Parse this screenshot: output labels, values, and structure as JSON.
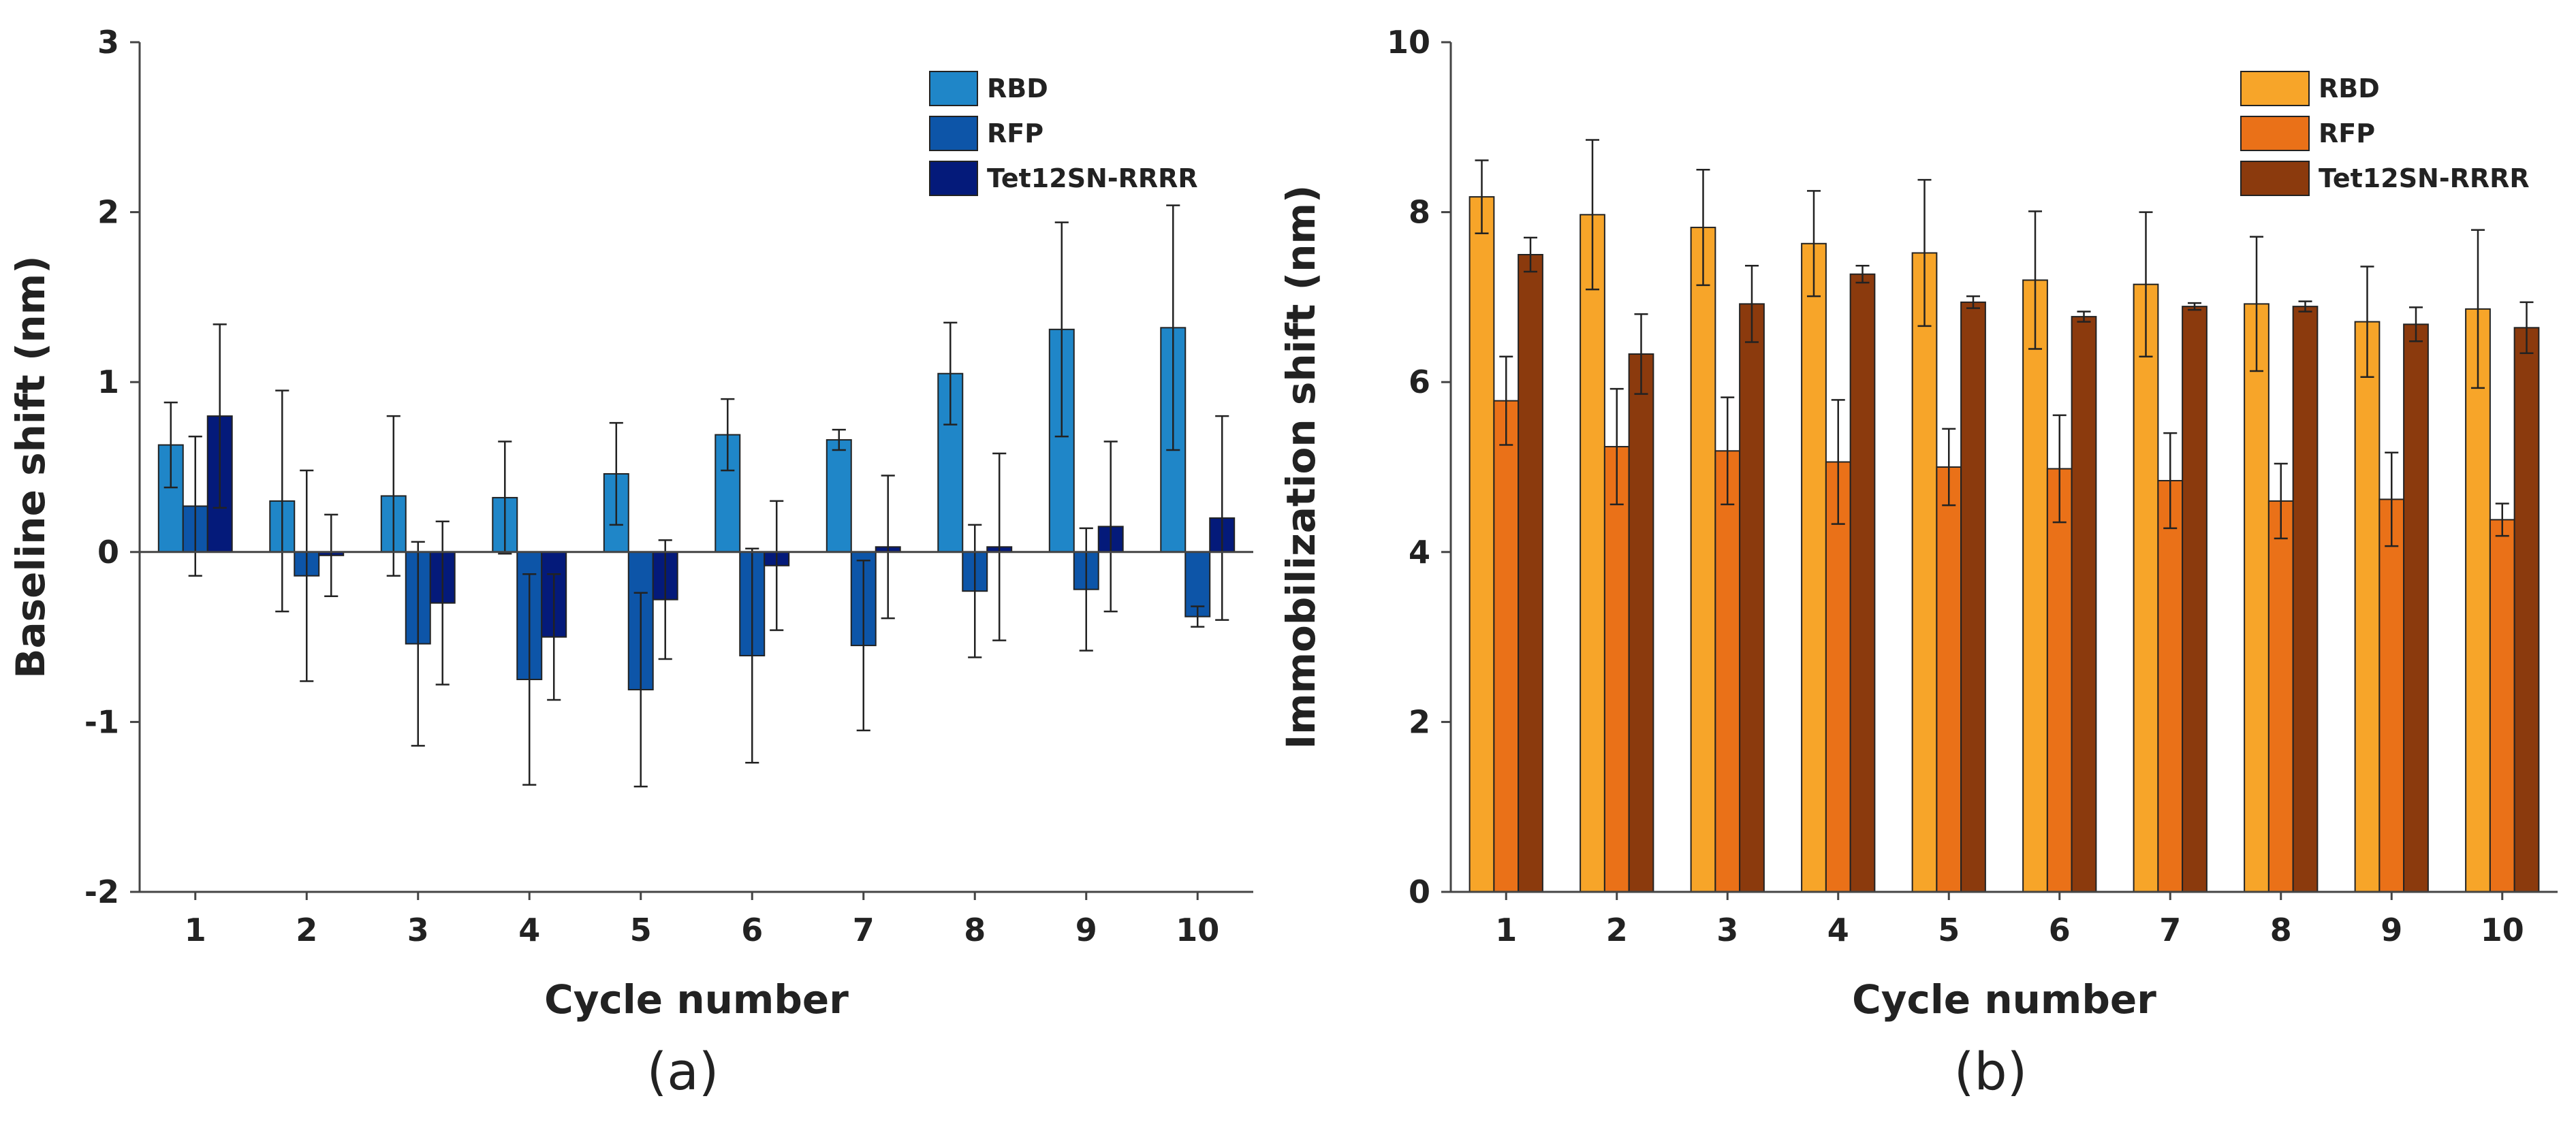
{
  "chart_data": [
    {
      "type": "bar",
      "panel": "(a)",
      "xlabel": "Cycle number",
      "ylabel": "Baseline shift (nm)",
      "ylim": [
        -2,
        3
      ],
      "yticks": [
        -2,
        -1,
        0,
        1,
        2,
        3
      ],
      "categories": [
        "1",
        "2",
        "3",
        "4",
        "5",
        "6",
        "7",
        "8",
        "9",
        "10"
      ],
      "legend_position": "top-right",
      "series": [
        {
          "name": "RBD",
          "color": "#1f86c8",
          "values": [
            0.63,
            0.3,
            0.33,
            0.32,
            0.46,
            0.69,
            0.66,
            1.05,
            1.31,
            1.32
          ],
          "errors": [
            0.25,
            0.65,
            0.47,
            0.33,
            0.3,
            0.21,
            0.06,
            0.3,
            0.63,
            0.72
          ]
        },
        {
          "name": "RFP",
          "color": "#0d55a8",
          "values": [
            0.27,
            -0.14,
            -0.54,
            -0.75,
            -0.81,
            -0.61,
            -0.55,
            -0.23,
            -0.22,
            -0.38
          ],
          "errors": [
            0.41,
            0.62,
            0.6,
            0.62,
            0.57,
            0.63,
            0.5,
            0.39,
            0.36,
            0.06
          ]
        },
        {
          "name": "Tet12SN-RRRR",
          "color": "#041a7a",
          "values": [
            0.8,
            -0.02,
            -0.3,
            -0.5,
            -0.28,
            -0.08,
            0.03,
            0.03,
            0.15,
            0.2
          ],
          "errors": [
            0.54,
            0.24,
            0.48,
            0.37,
            0.35,
            0.38,
            0.42,
            0.55,
            0.5,
            0.6
          ]
        }
      ]
    },
    {
      "type": "bar",
      "panel": "(b)",
      "xlabel": "Cycle number",
      "ylabel": "Immobilization shift (nm)",
      "ylim": [
        0,
        10
      ],
      "yticks": [
        0,
        2,
        4,
        6,
        8,
        10
      ],
      "categories": [
        "1",
        "2",
        "3",
        "4",
        "5",
        "6",
        "7",
        "8",
        "9",
        "10"
      ],
      "legend_position": "top-right",
      "series": [
        {
          "name": "RBD",
          "color": "#f7a529",
          "values": [
            8.18,
            7.97,
            7.82,
            7.63,
            7.52,
            7.2,
            7.15,
            6.92,
            6.71,
            6.86
          ],
          "errors": [
            0.43,
            0.88,
            0.68,
            0.62,
            0.86,
            0.81,
            0.85,
            0.79,
            0.65,
            0.93
          ]
        },
        {
          "name": "RFP",
          "color": "#ea7118",
          "values": [
            5.78,
            5.24,
            5.19,
            5.06,
            5.0,
            4.98,
            4.84,
            4.6,
            4.62,
            4.38
          ],
          "errors": [
            0.52,
            0.68,
            0.63,
            0.73,
            0.45,
            0.63,
            0.56,
            0.44,
            0.55,
            0.19
          ]
        },
        {
          "name": "Tet12SN-RRRR",
          "color": "#8b3a0d",
          "values": [
            7.5,
            6.33,
            6.92,
            7.27,
            6.94,
            6.77,
            6.89,
            6.89,
            6.68,
            6.64
          ],
          "errors": [
            0.2,
            0.47,
            0.45,
            0.1,
            0.07,
            0.06,
            0.04,
            0.06,
            0.2,
            0.3
          ]
        }
      ]
    }
  ]
}
